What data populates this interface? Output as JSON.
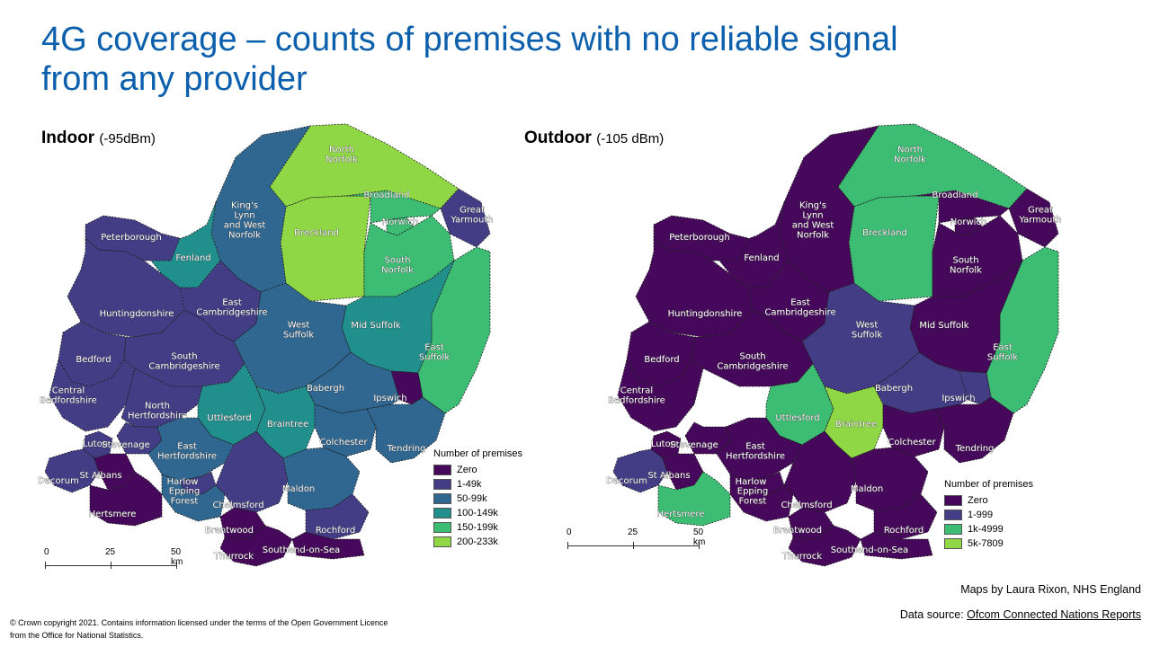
{
  "title": "4G coverage – counts of premises with no reliable signal from any provider",
  "indoor": {
    "heading": "Indoor",
    "subheading": "(-95dBm)",
    "legend": {
      "title": "Number of premises",
      "items": [
        {
          "label": "Zero",
          "color": "#45085a"
        },
        {
          "label": "1-49k",
          "color": "#433d86"
        },
        {
          "label": "50-99k",
          "color": "#2f6791"
        },
        {
          "label": "100-149k",
          "color": "#21908d"
        },
        {
          "label": "150-199k",
          "color": "#3dbc74"
        },
        {
          "label": "200-233k",
          "color": "#8fd744"
        }
      ]
    },
    "scale": {
      "ticks": [
        "0",
        "25",
        "50 km"
      ]
    },
    "regions": [
      {
        "name": "North\nNorfolk",
        "color": "#8fd744"
      },
      {
        "name": "Breckland",
        "color": "#8fd744"
      },
      {
        "name": "Broadland",
        "color": "#3dbc74"
      },
      {
        "name": "Norwich",
        "color": "#3dbc74"
      },
      {
        "name": "Great\nYarmouth",
        "color": "#433d86"
      },
      {
        "name": "South\nNorfolk",
        "color": "#3dbc74"
      },
      {
        "name": "East\nSuffolk",
        "color": "#3dbc74"
      },
      {
        "name": "Mid Suffolk",
        "color": "#21908d"
      },
      {
        "name": "King's\nLynn\nand West\nNorfolk",
        "color": "#2f6791"
      },
      {
        "name": "Fenland",
        "color": "#21908d"
      },
      {
        "name": "Peterborough",
        "color": "#433d86"
      },
      {
        "name": "Huntingdonshire",
        "color": "#433d86"
      },
      {
        "name": "East\nCambridgeshire",
        "color": "#433d86"
      },
      {
        "name": "West\nSuffolk",
        "color": "#2f6791"
      },
      {
        "name": "Bedford",
        "color": "#433d86"
      },
      {
        "name": "South\nCambridgeshire",
        "color": "#433d86"
      },
      {
        "name": "Central\nBedfordshire",
        "color": "#433d86"
      },
      {
        "name": "Babergh",
        "color": "#2f6791"
      },
      {
        "name": "Ipswich",
        "color": "#45085a"
      },
      {
        "name": "North\nHertfordshire",
        "color": "#433d86"
      },
      {
        "name": "Uttlesford",
        "color": "#21908d"
      },
      {
        "name": "Braintree",
        "color": "#21908d"
      },
      {
        "name": "Colchester",
        "color": "#2f6791"
      },
      {
        "name": "Tendring",
        "color": "#2f6791"
      },
      {
        "name": "Luton",
        "color": "#433d86"
      },
      {
        "name": "Stevenage",
        "color": "#433d86"
      },
      {
        "name": "East\nHertfordshire",
        "color": "#2f6791"
      },
      {
        "name": "Dacorum",
        "color": "#433d86"
      },
      {
        "name": "St Albans",
        "color": "#45085a"
      },
      {
        "name": "Harlow",
        "color": "#433d86"
      },
      {
        "name": "Epping\nForest",
        "color": "#2f6791"
      },
      {
        "name": "Hertsmere",
        "color": "#45085a"
      },
      {
        "name": "Chelmsford",
        "color": "#433d86"
      },
      {
        "name": "Maldon",
        "color": "#2f6791"
      },
      {
        "name": "Brentwood",
        "color": "#45085a"
      },
      {
        "name": "Rochford",
        "color": "#433d86"
      },
      {
        "name": "Southend-on-Sea",
        "color": "#45085a"
      },
      {
        "name": "Thurrock",
        "color": "#45085a"
      }
    ]
  },
  "outdoor": {
    "heading": "Outdoor",
    "subheading": "(-105 dBm)",
    "legend": {
      "title": "Number of premises",
      "items": [
        {
          "label": "Zero",
          "color": "#45085a"
        },
        {
          "label": "1-999",
          "color": "#433d86"
        },
        {
          "label": "1k-4999",
          "color": "#3dbc74"
        },
        {
          "label": "5k-7809",
          "color": "#8fd744"
        }
      ]
    },
    "scale": {
      "ticks": [
        "0",
        "25",
        "50 km"
      ]
    },
    "regions": [
      {
        "name": "North\nNorfolk",
        "color": "#3dbc74"
      },
      {
        "name": "Breckland",
        "color": "#3dbc74"
      },
      {
        "name": "Broadland",
        "color": "#45085a"
      },
      {
        "name": "Norwich",
        "color": "#45085a"
      },
      {
        "name": "Great\nYarmouth",
        "color": "#45085a"
      },
      {
        "name": "South\nNorfolk",
        "color": "#45085a"
      },
      {
        "name": "East\nSuffolk",
        "color": "#3dbc74"
      },
      {
        "name": "Mid Suffolk",
        "color": "#45085a"
      },
      {
        "name": "King's\nLynn\nand West\nNorfolk",
        "color": "#45085a"
      },
      {
        "name": "Fenland",
        "color": "#45085a"
      },
      {
        "name": "Peterborough",
        "color": "#45085a"
      },
      {
        "name": "Huntingdonshire",
        "color": "#45085a"
      },
      {
        "name": "East\nCambridgeshire",
        "color": "#45085a"
      },
      {
        "name": "West\nSuffolk",
        "color": "#433d86"
      },
      {
        "name": "Bedford",
        "color": "#45085a"
      },
      {
        "name": "South\nCambridgeshire",
        "color": "#45085a"
      },
      {
        "name": "Central\nBedfordshire",
        "color": "#45085a"
      },
      {
        "name": "Babergh",
        "color": "#433d86"
      },
      {
        "name": "Ipswich",
        "color": "#433d86"
      },
      {
        "name": "Uttlesford",
        "color": "#3dbc74"
      },
      {
        "name": "Braintree",
        "color": "#8fd744"
      },
      {
        "name": "Colchester",
        "color": "#45085a"
      },
      {
        "name": "Tendring",
        "color": "#45085a"
      },
      {
        "name": "Luton",
        "color": "#45085a"
      },
      {
        "name": "Stevenage",
        "color": "#45085a"
      },
      {
        "name": "East\nHertfordshire",
        "color": "#45085a"
      },
      {
        "name": "Dacorum",
        "color": "#433d86"
      },
      {
        "name": "St Albans",
        "color": "#45085a"
      },
      {
        "name": "Harlow",
        "color": "#45085a"
      },
      {
        "name": "Epping\nForest",
        "color": "#45085a"
      },
      {
        "name": "Hertsmere",
        "color": "#3dbc74"
      },
      {
        "name": "Chelmsford",
        "color": "#45085a"
      },
      {
        "name": "Maldon",
        "color": "#45085a"
      },
      {
        "name": "Brentwood",
        "color": "#45085a"
      },
      {
        "name": "Rochford",
        "color": "#45085a"
      },
      {
        "name": "Southend-on-Sea",
        "color": "#45085a"
      },
      {
        "name": "Thurrock",
        "color": "#45085a"
      }
    ]
  },
  "credits": {
    "author": "Maps by Laura Rixon, NHS England",
    "source_prefix": "Data source: ",
    "source_link": "Ofcom Connected Nations Reports"
  },
  "copyright": "© Crown copyright 2021. Contains information licensed under the terms of the Open Government Licence from the Office for National Statistics."
}
